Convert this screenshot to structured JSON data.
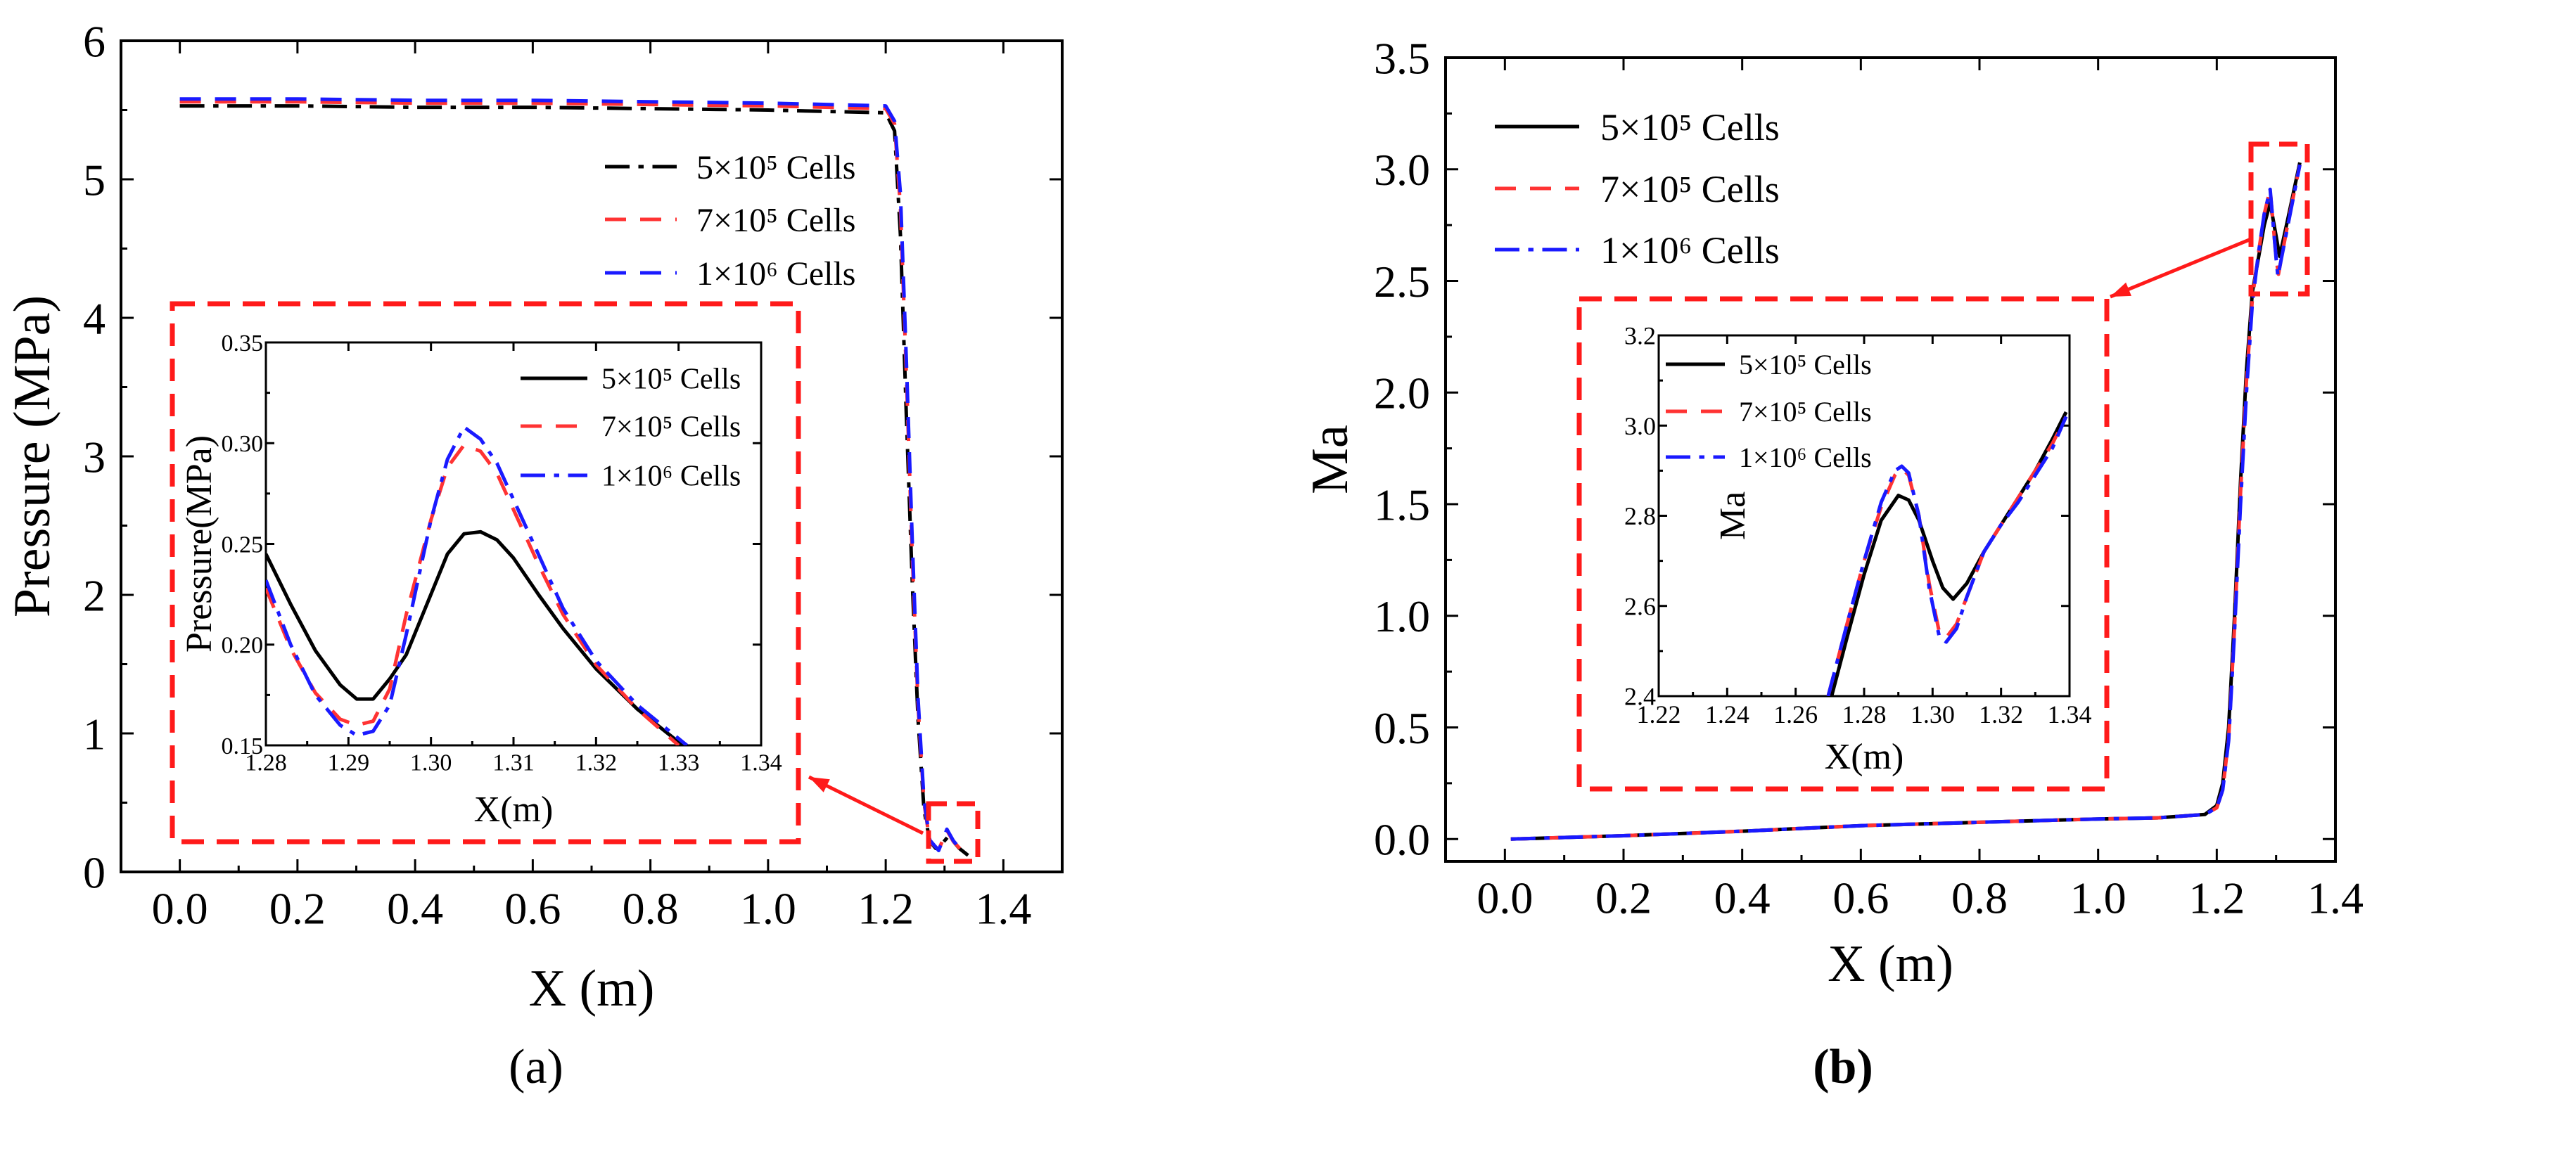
{
  "chart_data": [
    {
      "type": "line",
      "panel_label": "(a)",
      "xlabel": "X (m)",
      "ylabel": "Pressure (MPa)",
      "xlim": [
        -0.1,
        1.5
      ],
      "ylim": [
        0,
        6
      ],
      "xticks": [
        "0.0",
        "0.2",
        "0.4",
        "0.6",
        "0.8",
        "1.0",
        "1.2",
        "1.4"
      ],
      "yticks": [
        "0",
        "1",
        "2",
        "3",
        "4",
        "5",
        "6"
      ],
      "legend_position": "top-right",
      "series": [
        {
          "name": "5×10⁵ Cells",
          "color": "#000000",
          "style": "dashdot",
          "x": [
            0,
            0.2,
            0.4,
            0.6,
            0.8,
            1.0,
            1.2,
            1.215,
            1.225,
            1.235,
            1.245,
            1.255,
            1.265,
            1.275,
            1.285,
            1.295,
            1.305,
            1.315,
            1.325,
            1.34
          ],
          "y": [
            5.53,
            5.53,
            5.52,
            5.52,
            5.51,
            5.5,
            5.48,
            5.35,
            4.6,
            3.3,
            2.1,
            1.1,
            0.45,
            0.22,
            0.17,
            0.2,
            0.25,
            0.22,
            0.17,
            0.12
          ]
        },
        {
          "name": "7×10⁵ Cells",
          "color": "#ff3333",
          "style": "dashed",
          "x": [
            0,
            0.2,
            0.4,
            0.6,
            0.8,
            1.0,
            1.2,
            1.215,
            1.225,
            1.235,
            1.245,
            1.255,
            1.265,
            1.275,
            1.29,
            1.304,
            1.315,
            1.33
          ],
          "y": [
            5.56,
            5.56,
            5.55,
            5.55,
            5.54,
            5.53,
            5.51,
            5.4,
            4.8,
            3.6,
            2.3,
            1.2,
            0.5,
            0.22,
            0.16,
            0.3,
            0.22,
            0.15
          ]
        },
        {
          "name": "1×10⁶ Cells",
          "color": "#1a1aff",
          "style": "dashed",
          "x": [
            0,
            0.2,
            0.4,
            0.6,
            0.8,
            1.0,
            1.2,
            1.215,
            1.225,
            1.235,
            1.245,
            1.255,
            1.265,
            1.275,
            1.29,
            1.304,
            1.315,
            1.33
          ],
          "y": [
            5.58,
            5.58,
            5.57,
            5.57,
            5.56,
            5.55,
            5.53,
            5.42,
            4.9,
            3.7,
            2.4,
            1.25,
            0.52,
            0.23,
            0.155,
            0.308,
            0.225,
            0.15
          ]
        }
      ],
      "inset": {
        "xlabel": "X(m)",
        "ylabel": "Pressure(MPa)",
        "xlim": [
          1.28,
          1.34
        ],
        "ylim": [
          0.15,
          0.35
        ],
        "xticks": [
          "1.28",
          "1.29",
          "1.30",
          "1.31",
          "1.32",
          "1.33",
          "1.34"
        ],
        "yticks": [
          "0.15",
          "0.20",
          "0.25",
          "0.30",
          "0.35"
        ],
        "series": [
          {
            "name": "5×10⁵ Cells",
            "color": "#000000",
            "style": "solid",
            "x": [
              1.28,
              1.283,
              1.286,
              1.289,
              1.291,
              1.293,
              1.295,
              1.297,
              1.3,
              1.302,
              1.304,
              1.306,
              1.308,
              1.31,
              1.313,
              1.316,
              1.32,
              1.325,
              1.3305
            ],
            "y": [
              0.245,
              0.22,
              0.197,
              0.18,
              0.173,
              0.173,
              0.183,
              0.195,
              0.225,
              0.245,
              0.255,
              0.256,
              0.252,
              0.243,
              0.225,
              0.208,
              0.188,
              0.168,
              0.15
            ]
          },
          {
            "name": "7×10⁵ Cells",
            "color": "#ff3333",
            "style": "dashed",
            "x": [
              1.28,
              1.283,
              1.286,
              1.289,
              1.291,
              1.293,
              1.295,
              1.297,
              1.3,
              1.302,
              1.304,
              1.306,
              1.308,
              1.31,
              1.313,
              1.316,
              1.32,
              1.325,
              1.33
            ],
            "y": [
              0.228,
              0.198,
              0.176,
              0.163,
              0.16,
              0.162,
              0.178,
              0.215,
              0.262,
              0.288,
              0.299,
              0.296,
              0.285,
              0.267,
              0.24,
              0.215,
              0.19,
              0.168,
              0.15
            ]
          },
          {
            "name": "1×10⁶ Cells",
            "color": "#1a1aff",
            "style": "dashdot",
            "x": [
              1.28,
              1.283,
              1.286,
              1.289,
              1.291,
              1.293,
              1.295,
              1.297,
              1.3,
              1.302,
              1.304,
              1.306,
              1.308,
              1.31,
              1.313,
              1.316,
              1.32,
              1.325,
              1.331
            ],
            "y": [
              0.232,
              0.2,
              0.175,
              0.16,
              0.155,
              0.157,
              0.17,
              0.205,
              0.262,
              0.292,
              0.308,
              0.302,
              0.29,
              0.272,
              0.245,
              0.218,
              0.192,
              0.17,
              0.15
            ]
          }
        ]
      }
    },
    {
      "type": "line",
      "panel_label": "(b)",
      "xlabel": "X (m)",
      "ylabel": "Ma",
      "xlim": [
        -0.1,
        1.4
      ],
      "ylim": [
        -0.1,
        3.5
      ],
      "xticks": [
        "0.0",
        "0.2",
        "0.4",
        "0.6",
        "0.8",
        "1.0",
        "1.2",
        "1.4"
      ],
      "yticks": [
        "0.0",
        "0.5",
        "1.0",
        "1.5",
        "2.0",
        "2.5",
        "3.0",
        "3.5"
      ],
      "legend_position": "top-left",
      "series": [
        {
          "name": "5×10⁵ Cells",
          "color": "#000000",
          "style": "solid",
          "x": [
            0.01,
            0.2,
            0.4,
            0.6,
            0.8,
            1.0,
            1.1,
            1.18,
            1.2,
            1.21,
            1.22,
            1.23,
            1.24,
            1.25,
            1.26,
            1.27,
            1.28,
            1.29,
            1.3,
            1.306,
            1.32,
            1.34
          ],
          "y": [
            0.0,
            0.015,
            0.035,
            0.06,
            0.075,
            0.09,
            0.095,
            0.11,
            0.15,
            0.25,
            0.5,
            1.0,
            1.6,
            2.1,
            2.45,
            2.6,
            2.75,
            2.85,
            2.7,
            2.61,
            2.78,
            3.03
          ]
        },
        {
          "name": "7×10⁵ Cells",
          "color": "#ff3333",
          "style": "dashed",
          "x": [
            0.01,
            0.2,
            0.4,
            0.6,
            0.8,
            1.0,
            1.1,
            1.18,
            1.2,
            1.21,
            1.22,
            1.23,
            1.24,
            1.25,
            1.26,
            1.27,
            1.28,
            1.29,
            1.3,
            1.304,
            1.32,
            1.34
          ],
          "y": [
            0.0,
            0.015,
            0.035,
            0.06,
            0.075,
            0.09,
            0.095,
            0.11,
            0.14,
            0.22,
            0.45,
            0.95,
            1.55,
            2.05,
            2.42,
            2.62,
            2.8,
            2.91,
            2.6,
            2.53,
            2.76,
            3.02
          ]
        },
        {
          "name": "1×10⁶ Cells",
          "color": "#1a1aff",
          "style": "dashdot",
          "x": [
            0.01,
            0.2,
            0.4,
            0.6,
            0.8,
            1.0,
            1.1,
            1.18,
            1.2,
            1.21,
            1.22,
            1.23,
            1.24,
            1.25,
            1.26,
            1.27,
            1.28,
            1.29,
            1.3,
            1.303,
            1.32,
            1.34
          ],
          "y": [
            0.0,
            0.015,
            0.035,
            0.06,
            0.075,
            0.09,
            0.095,
            0.11,
            0.14,
            0.22,
            0.44,
            0.93,
            1.5,
            2.0,
            2.4,
            2.62,
            2.8,
            2.91,
            2.6,
            2.52,
            2.75,
            3.02
          ]
        }
      ],
      "inset": {
        "xlabel": "X(m)",
        "ylabel": "Ma",
        "xlim": [
          1.22,
          1.34
        ],
        "ylim": [
          2.4,
          3.2
        ],
        "xticks": [
          "1.22",
          "1.24",
          "1.26",
          "1.28",
          "1.30",
          "1.32",
          "1.34"
        ],
        "yticks": [
          "2.4",
          "2.6",
          "2.8",
          "3.0",
          "3.2"
        ],
        "series": [
          {
            "name": "5×10⁵ Cells",
            "color": "#000000",
            "style": "solid",
            "x": [
              1.2705,
              1.275,
              1.28,
              1.285,
              1.29,
              1.293,
              1.296,
              1.3,
              1.303,
              1.306,
              1.31,
              1.315,
              1.32,
              1.325,
              1.33,
              1.335,
              1.339
            ],
            "y": [
              2.4,
              2.53,
              2.67,
              2.79,
              2.845,
              2.835,
              2.79,
              2.7,
              2.64,
              2.615,
              2.65,
              2.72,
              2.78,
              2.84,
              2.9,
              2.97,
              3.03
            ]
          },
          {
            "name": "7×10⁵ Cells",
            "color": "#ff3333",
            "style": "dashed",
            "x": [
              1.2695,
              1.275,
              1.28,
              1.285,
              1.289,
              1.291,
              1.293,
              1.296,
              1.299,
              1.302,
              1.304,
              1.307,
              1.31,
              1.315,
              1.32,
              1.325,
              1.33,
              1.335,
              1.339
            ],
            "y": [
              2.4,
              2.56,
              2.7,
              2.82,
              2.89,
              2.905,
              2.89,
              2.8,
              2.65,
              2.54,
              2.53,
              2.56,
              2.62,
              2.72,
              2.78,
              2.84,
              2.9,
              2.96,
              3.02
            ]
          },
          {
            "name": "1×10⁶ Cells",
            "color": "#1a1aff",
            "style": "dashdot",
            "x": [
              1.2695,
              1.275,
              1.28,
              1.285,
              1.289,
              1.291,
              1.293,
              1.296,
              1.299,
              1.302,
              1.304,
              1.307,
              1.31,
              1.315,
              1.32,
              1.325,
              1.33,
              1.335,
              1.339
            ],
            "y": [
              2.4,
              2.56,
              2.7,
              2.83,
              2.9,
              2.91,
              2.895,
              2.8,
              2.64,
              2.53,
              2.52,
              2.55,
              2.62,
              2.72,
              2.78,
              2.83,
              2.89,
              2.95,
              3.02
            ]
          }
        ]
      }
    }
  ]
}
